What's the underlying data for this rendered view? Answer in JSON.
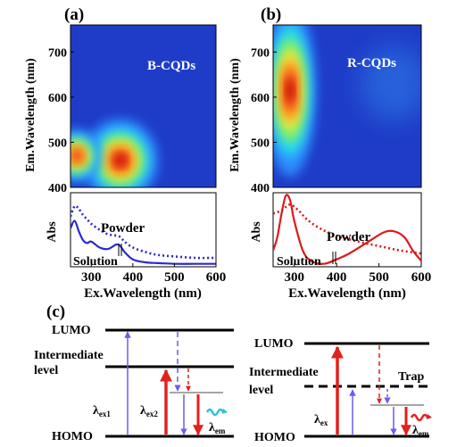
{
  "panels": {
    "a": {
      "label": "(a)",
      "sample": "B-CQDs"
    },
    "b": {
      "label": "(b)",
      "sample": "R-CQDs"
    },
    "c": {
      "label": "(c)"
    }
  },
  "colors": {
    "background": "#1e3cc8",
    "absorb_arrow": "#6a5cf0",
    "excite_arrow": "#e4201c",
    "blue_emission": "#2ec0d8",
    "red_emission": "#e4201c",
    "blue_series": "#2a2ad0",
    "red_series": "#e01818"
  },
  "chart_data": [
    {
      "type": "heatmap",
      "panel": "a",
      "title": "",
      "annotation": "B-CQDs",
      "xlabel": "",
      "ylabel": "Em.Wavelength (nm)",
      "xlim": [
        250,
        600
      ],
      "ylim": [
        400,
        760
      ],
      "yticks": [
        400,
        500,
        600,
        700
      ],
      "peaks": [
        {
          "ex": 370,
          "em": 460,
          "intensity": 1.0
        },
        {
          "ex": 265,
          "em": 470,
          "intensity": 0.55
        }
      ]
    },
    {
      "type": "heatmap",
      "panel": "b",
      "title": "",
      "annotation": "R-CQDs",
      "xlabel": "",
      "ylabel": "Em.Wavelength (nm)",
      "xlim": [
        250,
        600
      ],
      "ylim": [
        400,
        760
      ],
      "yticks": [
        400,
        500,
        600,
        700
      ],
      "peaks": [
        {
          "ex": 290,
          "em": 615,
          "intensity": 1.0
        },
        {
          "ex": 535,
          "em": 630,
          "intensity": 0.18
        }
      ]
    },
    {
      "type": "line",
      "panel": "a",
      "xlabel": "Ex.Wavelength (nm)",
      "ylabel": "Abs",
      "xlim": [
        250,
        600
      ],
      "ylim": [
        0,
        1
      ],
      "xticks": [
        300,
        400,
        500,
        600
      ],
      "series": [
        {
          "name": "Powder",
          "style": "dotted",
          "x": [
            250,
            260,
            270,
            280,
            290,
            300,
            320,
            340,
            360,
            370,
            380,
            400,
            430,
            460,
            500,
            550,
            600
          ],
          "y": [
            0.68,
            0.82,
            0.78,
            0.7,
            0.64,
            0.58,
            0.5,
            0.44,
            0.42,
            0.4,
            0.34,
            0.26,
            0.2,
            0.16,
            0.14,
            0.12,
            0.12
          ]
        },
        {
          "name": "Solution",
          "style": "solid",
          "x": [
            250,
            260,
            270,
            280,
            290,
            300,
            320,
            340,
            360,
            370,
            380,
            400,
            430,
            460,
            500,
            550,
            600
          ],
          "y": [
            0.52,
            0.62,
            0.48,
            0.36,
            0.32,
            0.34,
            0.26,
            0.24,
            0.3,
            0.28,
            0.2,
            0.1,
            0.06,
            0.05,
            0.04,
            0.04,
            0.04
          ]
        }
      ],
      "annotations": [
        "Powder",
        "Solution"
      ]
    },
    {
      "type": "line",
      "panel": "b",
      "xlabel": "Ex.Wavelength (nm)",
      "ylabel": "Abs",
      "xlim": [
        250,
        600
      ],
      "ylim": [
        0,
        1
      ],
      "xticks": [
        300,
        400,
        500,
        600
      ],
      "series": [
        {
          "name": "Powder",
          "style": "dotted",
          "x": [
            250,
            270,
            290,
            310,
            330,
            360,
            400,
            450,
            500,
            550,
            600
          ],
          "y": [
            0.72,
            0.76,
            0.84,
            0.76,
            0.64,
            0.52,
            0.42,
            0.34,
            0.28,
            0.22,
            0.18
          ]
        },
        {
          "name": "Solution",
          "style": "solid",
          "x": [
            250,
            260,
            270,
            280,
            290,
            300,
            320,
            340,
            370,
            400,
            430,
            470,
            510,
            535,
            560,
            580,
            600
          ],
          "y": [
            0.22,
            0.4,
            0.72,
            0.96,
            0.9,
            0.62,
            0.22,
            0.08,
            0.04,
            0.1,
            0.18,
            0.32,
            0.46,
            0.48,
            0.4,
            0.22,
            0.08
          ]
        }
      ],
      "annotations": [
        "Powder",
        "Solution"
      ]
    }
  ],
  "diagram": {
    "left": {
      "lumo": "LUMO",
      "intermediate_1": "Intermediate",
      "intermediate_2": "level",
      "homo": "HOMO",
      "lambda_ex1": "λ",
      "lambda_ex1_sub": "ex1",
      "lambda_ex2": "λ",
      "lambda_ex2_sub": "ex2",
      "lambda_em": "λ",
      "lambda_em_sub": "em"
    },
    "right": {
      "lumo": "LUMO",
      "intermediate_1": "Intermediate",
      "intermediate_2": "level",
      "trap": "Trap",
      "homo": "HOMO",
      "lambda_ex": "λ",
      "lambda_ex_sub": "ex",
      "lambda_em": "λ",
      "lambda_em_sub": "em"
    }
  }
}
